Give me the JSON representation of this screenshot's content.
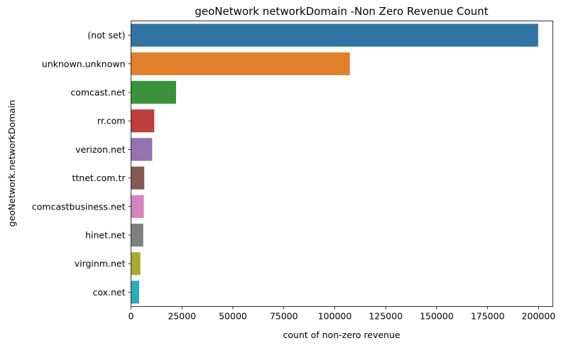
{
  "chart_data": {
    "type": "bar",
    "orientation": "horizontal",
    "title": "geoNetwork networkDomain -Non Zero Revenue Count",
    "xlabel": "count of non-zero revenue",
    "ylabel": "geoNetwork.networkDomain",
    "xlim": [
      0,
      207000
    ],
    "xticks": [
      0,
      25000,
      50000,
      75000,
      100000,
      125000,
      150000,
      175000,
      200000
    ],
    "xtick_labels": [
      "0",
      "25000",
      "50000",
      "75000",
      "100000",
      "125000",
      "150000",
      "175000",
      "200000"
    ],
    "grid": false,
    "categories": [
      "(not set)",
      "unknown.unknown",
      "comcast.net",
      "rr.com",
      "verizon.net",
      "ttnet.com.tr",
      "comcastbusiness.net",
      "hinet.net",
      "virginm.net",
      "cox.net"
    ],
    "values": [
      199800,
      107400,
      22100,
      11400,
      10400,
      6500,
      6300,
      6000,
      4600,
      4000
    ],
    "colors": [
      "#3274a1",
      "#e1812c",
      "#3a923a",
      "#c03d3e",
      "#9372b2",
      "#845b53",
      "#d684bd",
      "#7f7f7f",
      "#a9aa35",
      "#2eabb8"
    ]
  }
}
